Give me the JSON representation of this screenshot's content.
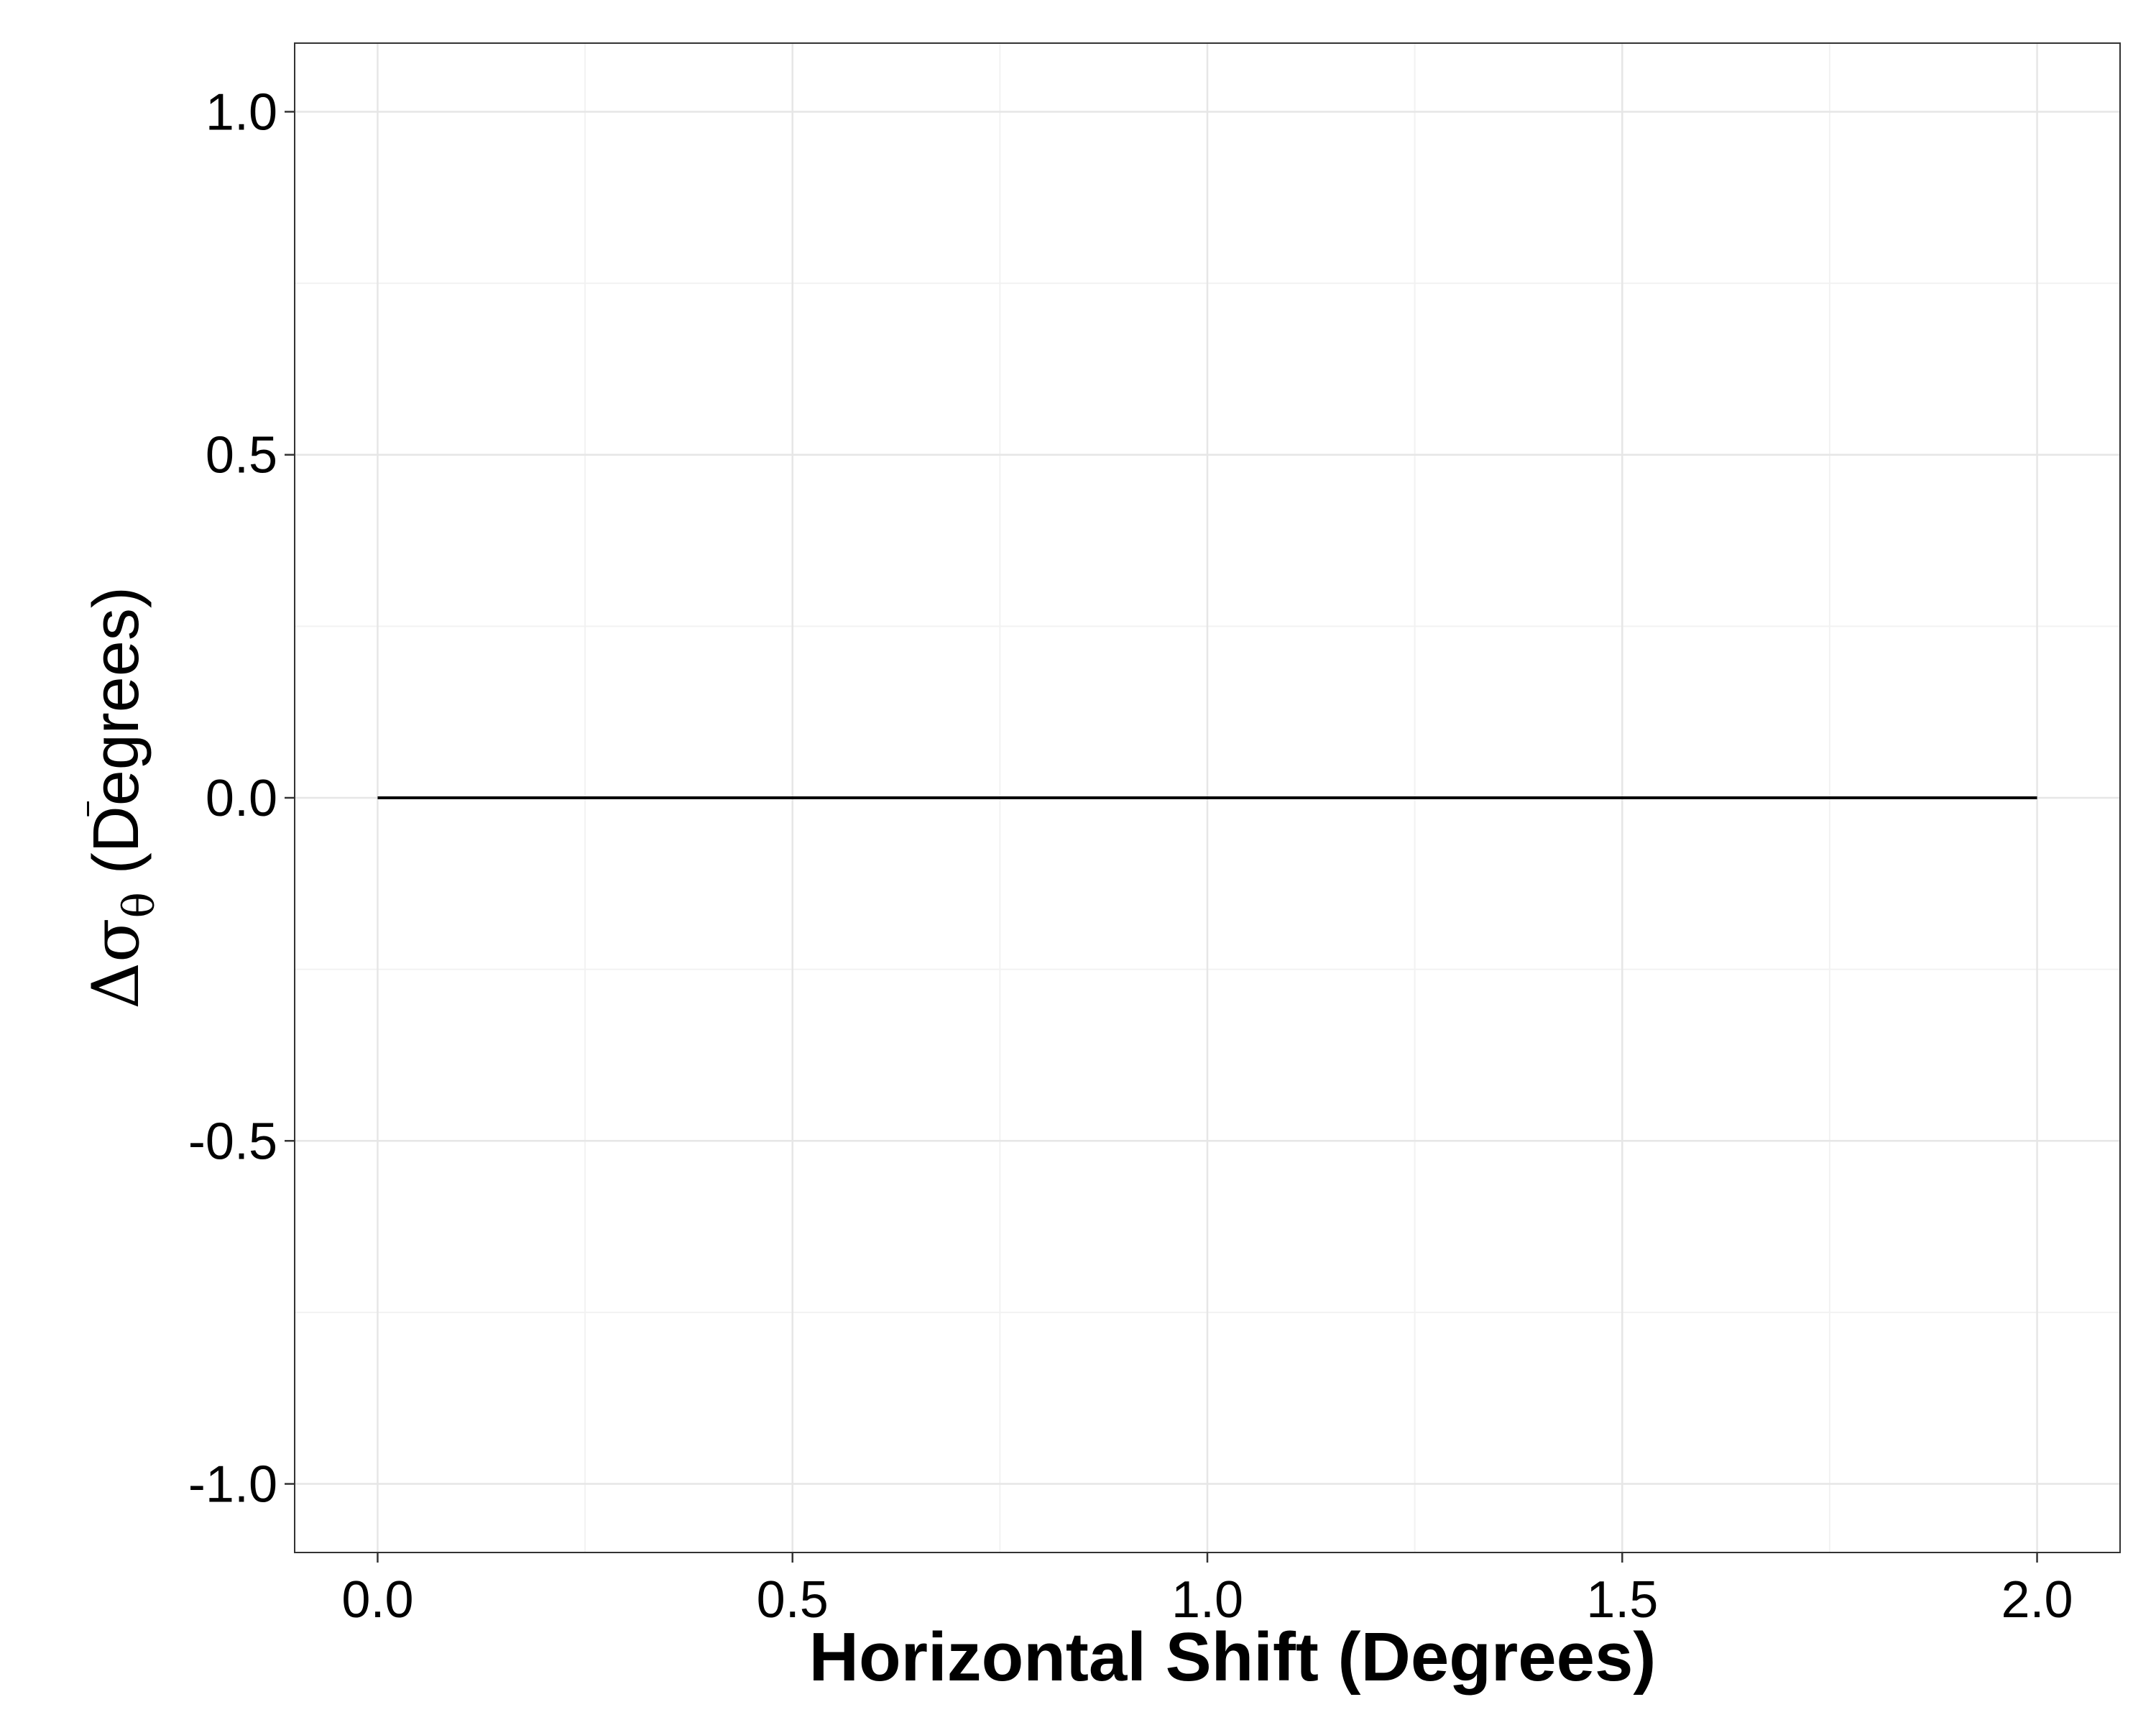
{
  "chart_data": {
    "type": "line",
    "xlabel": "Horizontal Shift (Degrees)",
    "ylabel": {
      "delta": "Δ",
      "sigma": "σ",
      "subscript": "θ",
      "bar": "‾",
      "unit": " (Degrees)"
    },
    "xlim": [
      -0.1,
      2.1
    ],
    "ylim": [
      -1.1,
      1.1
    ],
    "x_ticks": [
      {
        "value": 0.0,
        "label": "0.0"
      },
      {
        "value": 0.5,
        "label": "0.5"
      },
      {
        "value": 1.0,
        "label": "1.0"
      },
      {
        "value": 1.5,
        "label": "1.5"
      },
      {
        "value": 2.0,
        "label": "2.0"
      }
    ],
    "y_ticks": [
      {
        "value": -1.0,
        "label": "-1.0"
      },
      {
        "value": -0.5,
        "label": "-0.5"
      },
      {
        "value": 0.0,
        "label": "0.0"
      },
      {
        "value": 0.5,
        "label": "0.5"
      },
      {
        "value": 1.0,
        "label": "1.0"
      }
    ],
    "x_minor": [
      0.25,
      0.75,
      1.25,
      1.75
    ],
    "y_minor": [
      -0.75,
      -0.25,
      0.25,
      0.75
    ],
    "grid": true,
    "series": [
      {
        "color": "#000000",
        "x": [
          0.0,
          0.5,
          1.0,
          1.5,
          2.0
        ],
        "y": [
          0.0,
          0.0,
          0.0,
          0.0,
          0.0
        ]
      }
    ]
  }
}
